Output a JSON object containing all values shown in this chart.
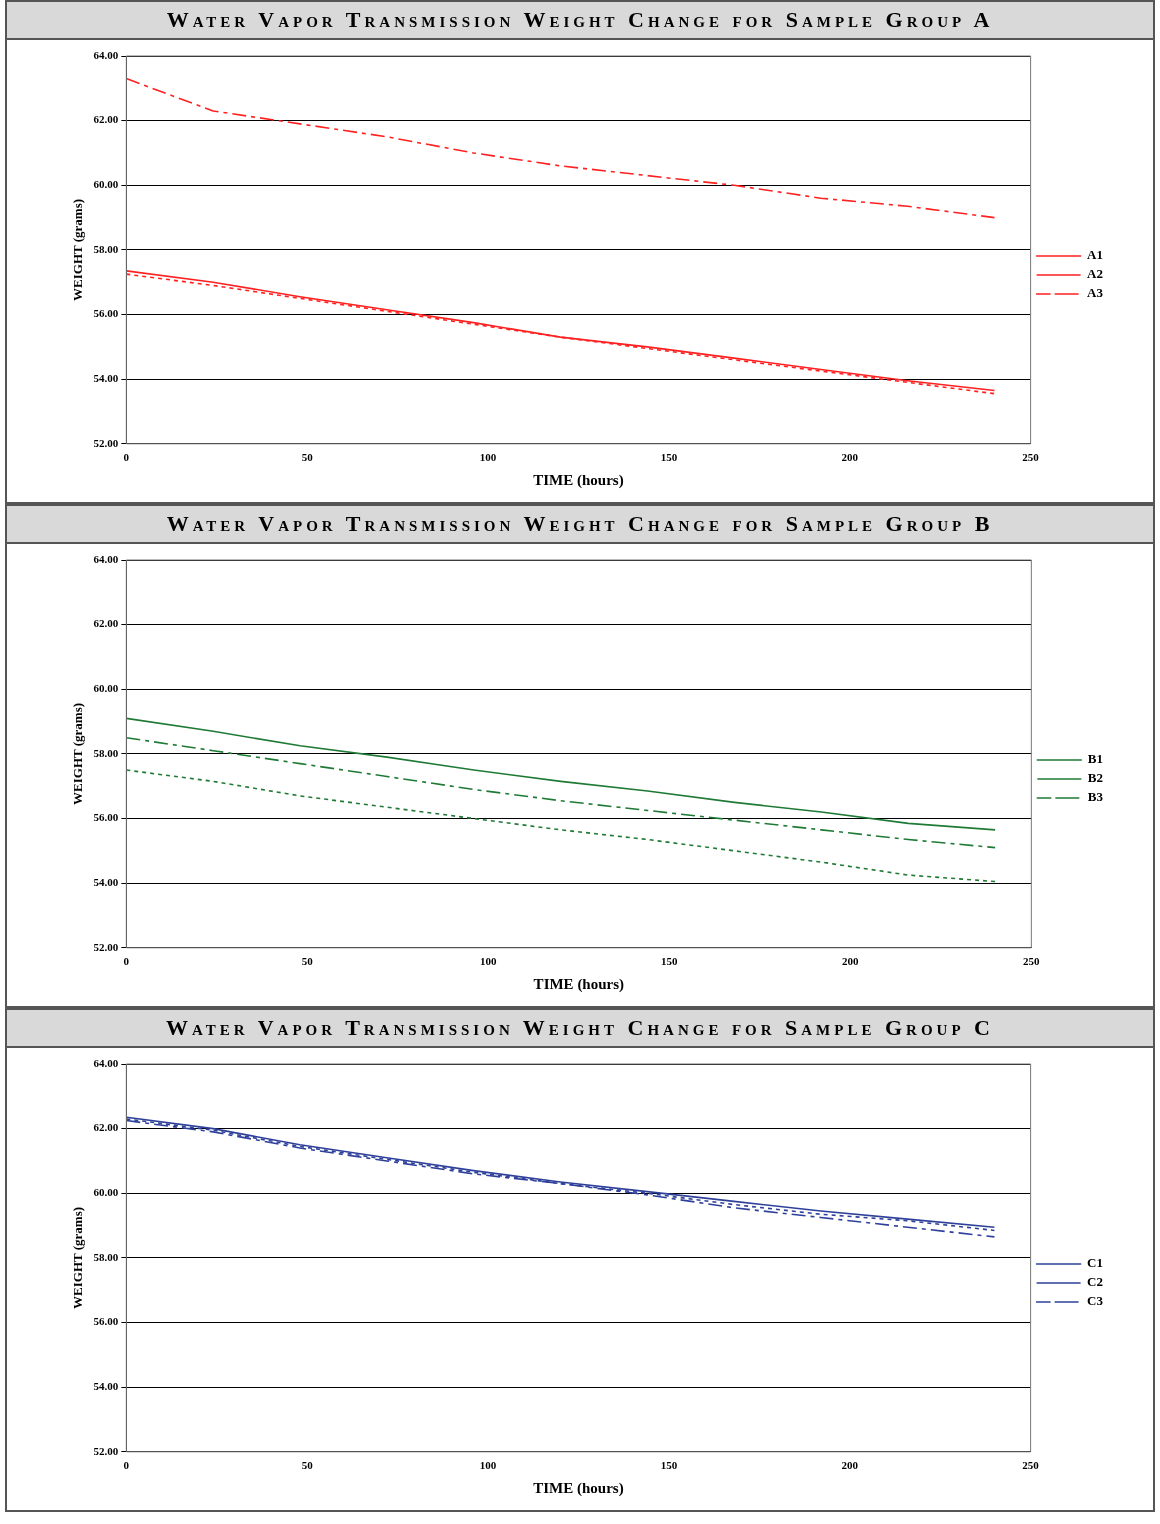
{
  "chart_data": [
    {
      "type": "line",
      "title": "Water Vapor Transmission Weight Change for Sample Group A",
      "xlabel": "TIME (hours)",
      "ylabel": "WEIGHT (grams)",
      "x": [
        0,
        24,
        48,
        72,
        96,
        120,
        144,
        168,
        192,
        216,
        240
      ],
      "xlim": [
        0,
        250
      ],
      "xticks": [
        0,
        50,
        100,
        150,
        200,
        250
      ],
      "ylim": [
        52,
        64
      ],
      "yticks": [
        {
          "value": 52,
          "label": "52.00"
        },
        {
          "value": 54,
          "label": "54.00"
        },
        {
          "value": 56,
          "label": "56.00"
        },
        {
          "value": 58,
          "label": "58.00"
        },
        {
          "value": 60,
          "label": "60.00"
        },
        {
          "value": 62,
          "label": "62.00"
        },
        {
          "value": 64,
          "label": "64.00"
        }
      ],
      "grid": "y",
      "legend": "right",
      "marker": "none",
      "series": [
        {
          "name": "A1",
          "color": "#ff2020",
          "line_style": "solid",
          "values": [
            57.35,
            57.0,
            56.55,
            56.15,
            55.75,
            55.3,
            55.0,
            54.65,
            54.3,
            53.95,
            53.65
          ]
        },
        {
          "name": "A2",
          "color": "#ff2020",
          "line_style": "dotted",
          "values": [
            57.25,
            56.9,
            56.5,
            56.1,
            55.7,
            55.3,
            54.95,
            54.6,
            54.25,
            53.9,
            53.55
          ]
        },
        {
          "name": "A3",
          "color": "#ff2020",
          "line_style": "dashed",
          "values": [
            63.3,
            62.3,
            61.9,
            61.5,
            61.0,
            60.6,
            60.3,
            60.0,
            59.6,
            59.35,
            59.0
          ]
        }
      ]
    },
    {
      "type": "line",
      "title": "Water Vapor Transmission Weight Change for Sample Group B",
      "xlabel": "TIME (hours)",
      "ylabel": "WEIGHT (grams)",
      "x": [
        0,
        24,
        48,
        72,
        96,
        120,
        144,
        168,
        192,
        216,
        240
      ],
      "xlim": [
        0,
        250
      ],
      "xticks": [
        0,
        50,
        100,
        150,
        200,
        250
      ],
      "ylim": [
        52,
        64
      ],
      "yticks": [
        {
          "value": 52,
          "label": "52.00"
        },
        {
          "value": 54,
          "label": "54.00"
        },
        {
          "value": 56,
          "label": "56.00"
        },
        {
          "value": 58,
          "label": "58.00"
        },
        {
          "value": 60,
          "label": "60.00"
        },
        {
          "value": 62,
          "label": "62.00"
        },
        {
          "value": 64,
          "label": "64.00"
        }
      ],
      "grid": "y",
      "legend": "right",
      "marker": "none",
      "series": [
        {
          "name": "B1",
          "color": "#1f7a35",
          "line_style": "solid",
          "values": [
            59.1,
            58.7,
            58.25,
            57.9,
            57.5,
            57.15,
            56.85,
            56.5,
            56.2,
            55.85,
            55.65
          ]
        },
        {
          "name": "B2",
          "color": "#1f7a35",
          "line_style": "dotted",
          "values": [
            57.5,
            57.15,
            56.7,
            56.35,
            56.0,
            55.65,
            55.35,
            55.0,
            54.65,
            54.25,
            54.05
          ]
        },
        {
          "name": "B3",
          "color": "#1f7a35",
          "line_style": "dashed",
          "values": [
            58.5,
            58.1,
            57.7,
            57.3,
            56.9,
            56.55,
            56.25,
            55.95,
            55.65,
            55.35,
            55.1
          ]
        }
      ]
    },
    {
      "type": "line",
      "title": "Water Vapor Transmission Weight Change for Sample Group C",
      "xlabel": "TIME (hours)",
      "ylabel": "WEIGHT (grams)",
      "x": [
        0,
        24,
        48,
        72,
        96,
        120,
        144,
        168,
        192,
        216,
        240
      ],
      "xlim": [
        0,
        250
      ],
      "xticks": [
        0,
        50,
        100,
        150,
        200,
        250
      ],
      "ylim": [
        52,
        64
      ],
      "yticks": [
        {
          "value": 52,
          "label": "52.00"
        },
        {
          "value": 54,
          "label": "54.00"
        },
        {
          "value": 56,
          "label": "56.00"
        },
        {
          "value": 58,
          "label": "58.00"
        },
        {
          "value": 60,
          "label": "60.00"
        },
        {
          "value": 62,
          "label": "62.00"
        },
        {
          "value": 64,
          "label": "64.00"
        }
      ],
      "grid": "y",
      "legend": "right",
      "marker": "none",
      "series": [
        {
          "name": "C1",
          "color": "#2e409a",
          "line_style": "solid",
          "values": [
            62.35,
            62.0,
            61.5,
            61.1,
            60.7,
            60.35,
            60.05,
            59.75,
            59.45,
            59.2,
            58.95
          ]
        },
        {
          "name": "C2",
          "color": "#2e409a",
          "line_style": "dotted",
          "values": [
            62.3,
            61.95,
            61.45,
            61.05,
            60.65,
            60.3,
            60.0,
            59.65,
            59.35,
            59.15,
            58.85
          ]
        },
        {
          "name": "C3",
          "color": "#2e409a",
          "line_style": "dashed",
          "values": [
            62.25,
            61.9,
            61.4,
            61.0,
            60.6,
            60.3,
            59.95,
            59.55,
            59.25,
            58.95,
            58.65
          ]
        }
      ]
    }
  ]
}
